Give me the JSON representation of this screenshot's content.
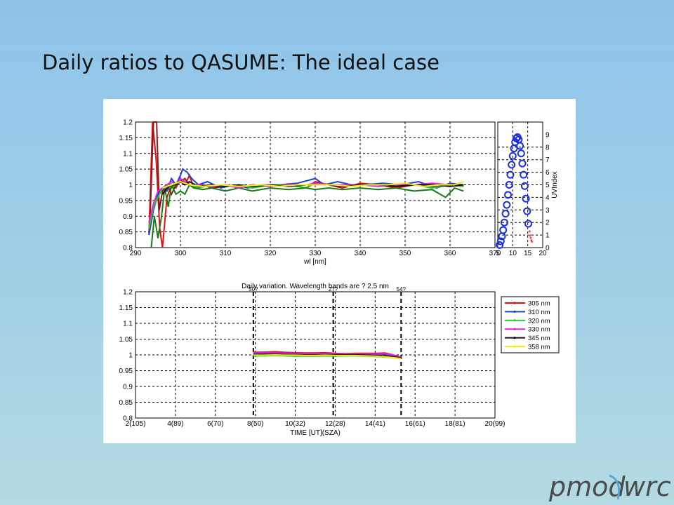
{
  "slide": {
    "title": "Daily ratios to QASUME: The ideal case"
  },
  "logo": {
    "left": "pmod",
    "right": "wrc"
  },
  "colors": {
    "305 nm": "#dd1111",
    "310 nm": "#1f3fd6",
    "320 nm": "#22cc22",
    "330 nm": "#dd22dd",
    "345 nm": "#111111",
    "358 nm": "#eeee11",
    "uv_marker": "#1a2fe0",
    "uv_marker_late": "#dd1111"
  },
  "chart_data": [
    {
      "type": "line",
      "xlabel": "wl [nm]",
      "ylabel": "",
      "xlim": [
        290,
        370
      ],
      "ylim": [
        0.8,
        1.2
      ],
      "xticks": [
        290,
        300,
        310,
        320,
        330,
        340,
        350,
        360,
        370
      ],
      "yticks": [
        0.8,
        0.85,
        0.9,
        0.95,
        1,
        1.05,
        1.1,
        1.15,
        1.2
      ],
      "ytick_labels": [
        "0.8",
        "0.85",
        "0.9",
        "0.95",
        "1",
        "1.05",
        "1.1",
        "1.15",
        "1.2"
      ],
      "grid": true,
      "series": [
        {
          "color": "#dd1111",
          "x": [
            293.0,
            293.8,
            294.6,
            295.4,
            296.0,
            297.0,
            298.0,
            299.0,
            300.0,
            301.0,
            302.0,
            303.0,
            305.0,
            307.0,
            310.0,
            313.0,
            316.0,
            320.0,
            324.0,
            328.0,
            330.0,
            333.0,
            336.0,
            340.0,
            344.0,
            348.0,
            352.0,
            356.0,
            360.0,
            363.0
          ],
          "y": [
            0.84,
            1.2,
            1.08,
            0.86,
            0.8,
            0.96,
            1.0,
            0.99,
            1.02,
            1.0,
            1.03,
            0.99,
            1.0,
            0.99,
            1.0,
            0.99,
            1.0,
            0.995,
            1.0,
            0.99,
            1.01,
            1.0,
            0.99,
            1.005,
            1.0,
            0.99,
            1.0,
            1.0,
            0.995,
            1.0
          ]
        },
        {
          "color": "#8b1a1a",
          "x": [
            293.2,
            294.0,
            294.7,
            295.3,
            296.0,
            297.0,
            298.0,
            299.0,
            300.0,
            301.0,
            302.0,
            303.0,
            305.0,
            307.0,
            310.0,
            313.0,
            316.0,
            320.0,
            324.0,
            328.0,
            330.0,
            333.0,
            336.0,
            340.0,
            344.0,
            348.0,
            352.0,
            356.0,
            360.0,
            363.0
          ],
          "y": [
            0.88,
            1.2,
            1.2,
            0.92,
            0.98,
            1.0,
            0.97,
            1.0,
            1.01,
            1.02,
            1.0,
            0.995,
            1.0,
            0.99,
            0.995,
            1.0,
            0.99,
            1.0,
            0.995,
            1.0,
            1.0,
            1.0,
            0.995,
            1.0,
            1.0,
            0.995,
            1.0,
            0.995,
            1.0,
            0.995
          ]
        },
        {
          "color": "#1f3fd6",
          "x": [
            293.0,
            294.0,
            295.0,
            296.0,
            297.0,
            298.0,
            299.0,
            300.0,
            300.5,
            301.5,
            302.5,
            304.0,
            306.0,
            309.0,
            312.0,
            315.0,
            318.0,
            322.0,
            326.0,
            330.0,
            332.0,
            335.0,
            338.0,
            341.0,
            345.0,
            349.0,
            353.0,
            357.0,
            360.0,
            363.0
          ],
          "y": [
            0.84,
            0.92,
            0.97,
            0.99,
            0.98,
            1.02,
            1.0,
            1.03,
            1.05,
            1.04,
            1.02,
            1.0,
            1.01,
            0.99,
            1.0,
            0.99,
            1.0,
            1.0,
            1.005,
            1.02,
            1.0,
            1.01,
            1.0,
            1.0,
            1.005,
            1.0,
            1.01,
            0.99,
            1.005,
            1.0
          ]
        },
        {
          "color": "#22cc22",
          "x": [
            293.0,
            294.0,
            295.0,
            296.0,
            297.0,
            298.0,
            299.0,
            300.0,
            302.0,
            304.0,
            307.0,
            310.0,
            313.0,
            316.0,
            320.0,
            324.0,
            328.0,
            330.0,
            333.0,
            336.0,
            340.0,
            344.0,
            348.0,
            352.0,
            356.0,
            360.0,
            363.0
          ],
          "y": [
            0.86,
            0.93,
            0.96,
            0.99,
            1.0,
            0.99,
            1.0,
            1.01,
            1.0,
            0.99,
            1.0,
            0.995,
            1.0,
            0.99,
            1.0,
            1.0,
            0.99,
            1.005,
            1.0,
            0.995,
            1.0,
            1.0,
            0.995,
            1.0,
            0.99,
            1.0,
            0.995
          ]
        },
        {
          "color": "#1a7a1a",
          "x": [
            293.5,
            294.2,
            295.0,
            295.8,
            296.5,
            297.3,
            298.0,
            299.0,
            300.0,
            301.0,
            302.0,
            303.0,
            305.0,
            307.0,
            310.0,
            313.0,
            316.0,
            320.0,
            324.0,
            328.0,
            330.0,
            333.0,
            336.0,
            340.0,
            344.0,
            348.0,
            352.0,
            356.0,
            359.0,
            361.0,
            363.0
          ],
          "y": [
            0.8,
            0.9,
            0.83,
            0.9,
            0.99,
            0.93,
            1.0,
            0.97,
            0.98,
            0.97,
            1.0,
            0.99,
            0.985,
            0.99,
            0.98,
            0.99,
            0.98,
            0.99,
            0.985,
            0.99,
            0.985,
            0.99,
            0.985,
            0.99,
            0.985,
            0.99,
            0.98,
            0.985,
            0.96,
            0.99,
            0.98
          ]
        },
        {
          "color": "#dd22dd",
          "x": [
            293.0,
            294.0,
            295.0,
            296.0,
            297.0,
            298.0,
            299.0,
            300.0,
            301.0,
            302.0,
            304.0,
            307.0,
            310.0,
            313.0,
            316.0,
            320.0,
            324.0,
            328.0,
            330.0,
            333.0,
            336.0,
            340.0,
            344.0,
            348.0,
            352.0,
            356.0,
            360.0,
            363.0
          ],
          "y": [
            0.88,
            0.94,
            0.98,
            0.99,
            1.0,
            1.01,
            1.0,
            1.02,
            1.01,
            1.0,
            1.0,
            0.995,
            1.0,
            0.99,
            1.0,
            0.995,
            1.0,
            1.0,
            1.005,
            1.0,
            1.0,
            1.0,
            0.995,
            1.0,
            1.0,
            1.005,
            1.0,
            1.0
          ]
        },
        {
          "color": "#111111",
          "x": [
            296.0,
            297.0,
            298.0,
            299.0,
            300.0,
            301.0,
            302.0,
            304.0,
            307.0,
            310.0,
            313.0,
            316.0,
            320.0,
            324.0,
            328.0,
            330.0,
            333.0,
            336.0,
            340.0,
            344.0,
            348.0,
            352.0,
            356.0,
            360.0,
            363.0
          ],
          "y": [
            0.97,
            0.99,
            1.0,
            1.0,
            1.01,
            1.0,
            1.01,
            0.995,
            1.0,
            0.995,
            1.0,
            0.995,
            1.0,
            0.995,
            1.0,
            1.0,
            1.0,
            0.995,
            1.0,
            1.0,
            0.995,
            1.0,
            1.0,
            0.995,
            1.0
          ]
        },
        {
          "color": "#eeee11",
          "x": [
            296.0,
            298.0,
            300.0,
            302.0,
            305.0,
            309.0,
            313.0,
            318.0,
            322.0,
            326.0,
            330.0,
            334.0,
            338.0,
            342.0,
            346.0,
            350.0,
            354.0,
            358.0,
            361.0,
            363.0
          ],
          "y": [
            0.99,
            1.0,
            1.01,
            1.0,
            0.995,
            1.0,
            0.995,
            1.0,
            0.995,
            1.0,
            1.0,
            1.0,
            0.995,
            1.0,
            1.0,
            1.005,
            0.995,
            1.0,
            1.0,
            1.01
          ]
        }
      ]
    },
    {
      "type": "scatter",
      "xlabel": "",
      "ylabel": "UVIndex",
      "xlim": [
        5,
        20
      ],
      "ylim": [
        0,
        10
      ],
      "xticks": [
        5,
        10,
        15,
        20
      ],
      "yticks": [
        0,
        1,
        2,
        3,
        4,
        5,
        6,
        7,
        8,
        9
      ],
      "grid": true,
      "points_x": [
        5.6,
        6.0,
        6.4,
        6.8,
        7.2,
        7.6,
        8.0,
        8.4,
        8.8,
        9.2,
        9.6,
        10.0,
        10.4,
        10.8,
        11.2,
        11.6,
        12.0,
        12.4,
        12.8,
        13.2,
        13.6,
        14.0,
        14.4,
        14.8,
        15.2
      ],
      "points_y": [
        0.2,
        0.5,
        0.9,
        1.4,
        2.0,
        2.7,
        3.4,
        4.2,
        5.0,
        5.8,
        6.6,
        7.3,
        7.9,
        8.4,
        8.7,
        8.8,
        8.6,
        8.1,
        7.5,
        6.7,
        5.8,
        4.9,
        3.9,
        2.9,
        1.9
      ],
      "late_points_x": [
        15.6,
        15.8,
        16.0,
        16.2,
        16.4
      ],
      "late_points_y": [
        1.2,
        0.9,
        0.7,
        0.5,
        0.4
      ]
    },
    {
      "type": "line",
      "title": "Daily variation. Wavelength bands are ? 2.5 nm",
      "xlabel": "TIME [UT](SZA)",
      "ylabel": "",
      "xlim": [
        2,
        20
      ],
      "ylim": [
        0.8,
        1.2
      ],
      "xticks": [
        2,
        4,
        6,
        8,
        10,
        12,
        14,
        16,
        18,
        20
      ],
      "xtick_labels": [
        "2(105)",
        "4(89)",
        "6(70)",
        "8(50)",
        "10(32)",
        "12(28)",
        "14(41)",
        "16(61)",
        "18(81)",
        "20(99)"
      ],
      "yticks": [
        0.8,
        0.85,
        0.9,
        0.95,
        1,
        1.05,
        1.1,
        1.15,
        1.2
      ],
      "ytick_labels": [
        "0.8",
        "0.85",
        "0.9",
        "0.95",
        "1",
        "1.05",
        "1.1",
        "1.15",
        "1.2"
      ],
      "grid": true,
      "legend_position": "top-right",
      "vlines": [
        {
          "x": 7.9,
          "label": "50?"
        },
        {
          "x": 11.9,
          "label": "27?"
        },
        {
          "x": 15.3,
          "label": "54?"
        }
      ],
      "x": [
        7.9,
        8.5,
        9.0,
        9.5,
        10.0,
        10.5,
        11.0,
        11.5,
        12.0,
        12.5,
        13.0,
        13.5,
        14.0,
        14.5,
        15.0,
        15.3
      ],
      "series": [
        {
          "name": "305 nm",
          "values": [
            1.008,
            1.009,
            1.01,
            1.008,
            1.007,
            1.006,
            1.006,
            1.007,
            1.005,
            1.004,
            1.005,
            1.005,
            1.005,
            1.006,
            0.998,
            0.993
          ]
        },
        {
          "name": "310 nm",
          "values": [
            1.004,
            1.005,
            1.005,
            1.004,
            1.003,
            1.002,
            1.002,
            1.003,
            1.002,
            1.001,
            1.002,
            1.002,
            1.002,
            1.002,
            0.996,
            0.991
          ]
        },
        {
          "name": "320 nm",
          "values": [
            0.997,
            0.997,
            0.998,
            0.997,
            0.996,
            0.996,
            0.996,
            0.997,
            0.996,
            0.997,
            0.997,
            0.996,
            0.995,
            0.993,
            0.991,
            0.988
          ]
        },
        {
          "name": "330 nm",
          "values": [
            1.006,
            1.007,
            1.006,
            1.005,
            1.005,
            1.004,
            1.004,
            1.005,
            1.003,
            1.002,
            1.003,
            1.003,
            1.003,
            1.004,
            0.997,
            0.993
          ]
        },
        {
          "name": "345 nm",
          "values": [
            1.001,
            1.002,
            1.002,
            1.001,
            1.001,
            1.0,
            1.0,
            1.001,
            1.0,
            1.0,
            1.0,
            0.999,
            0.998,
            0.997,
            0.993,
            0.99
          ]
        },
        {
          "name": "358 nm",
          "values": [
            0.999,
            0.999,
            1.0,
            0.999,
            0.999,
            0.998,
            0.998,
            0.999,
            0.998,
            0.998,
            0.998,
            0.997,
            0.996,
            0.994,
            0.991,
            0.988
          ]
        }
      ]
    }
  ]
}
